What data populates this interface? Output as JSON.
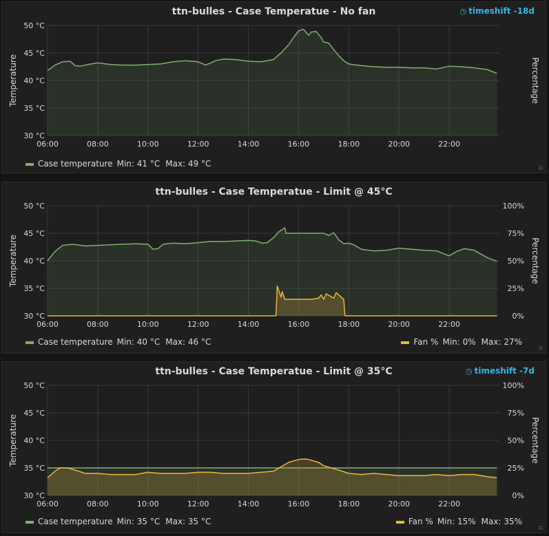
{
  "panels": [
    {
      "title": "ttn-bulles - Case Temperatue - No fan",
      "timeshift": "timeshift -18d",
      "y_left_label": "Temperature",
      "y_right_label": "Percentage",
      "legend_left": {
        "name": "Case temperature",
        "min": "Min: 41 °C",
        "max": "Max: 49 °C"
      },
      "legend_right": null
    },
    {
      "title": "ttn-bulles - Case Temperatue - Limit @ 45°C",
      "timeshift": "",
      "y_left_label": "Temperature",
      "y_right_label": "Percentage",
      "legend_left": {
        "name": "Case temperature",
        "min": "Min: 40 °C",
        "max": "Max: 46 °C"
      },
      "legend_right": {
        "name": "Fan %",
        "min": "Min: 0%",
        "max": "Max: 27%"
      }
    },
    {
      "title": "ttn-bulles - Case Temperatue - Limit @ 35°C",
      "timeshift": "timeshift -7d",
      "y_left_label": "Temperature",
      "y_right_label": "Percentage",
      "legend_left": {
        "name": "Case temperature",
        "min": "Min: 35 °C",
        "max": "Max: 35 °C"
      },
      "legend_right": {
        "name": "Fan %",
        "min": "Min: 15%",
        "max": "Max: 35%"
      }
    }
  ],
  "chart_data": [
    {
      "type": "area",
      "title": "ttn-bulles - Case Temperatue - No fan",
      "xlabel": "",
      "ylabel": "Temperature",
      "y2label": "Percentage",
      "xlim": [
        6,
        24
      ],
      "ylim": [
        30,
        50
      ],
      "x_ticks": [
        "06:00",
        "08:00",
        "10:00",
        "12:00",
        "14:00",
        "16:00",
        "18:00",
        "20:00",
        "22:00"
      ],
      "y_ticks": [
        "30 °C",
        "35 °C",
        "40 °C",
        "45 °C",
        "50 °C"
      ],
      "y2_ticks": [],
      "grid": true,
      "legend": "bottom-left",
      "colors": {
        "temperature": "#7eb26d",
        "fan": "#eab839"
      },
      "series": [
        {
          "name": "Case temperature",
          "axis": "left",
          "x": [
            6.0,
            6.3,
            6.6,
            6.9,
            7.1,
            7.3,
            7.6,
            8.0,
            8.5,
            9.0,
            9.5,
            10.0,
            10.5,
            11.0,
            11.5,
            12.0,
            12.3,
            12.7,
            13.0,
            13.5,
            14.0,
            14.5,
            15.0,
            15.3,
            15.6,
            15.8,
            16.0,
            16.2,
            16.4,
            16.5,
            16.7,
            16.9,
            17.0,
            17.2,
            17.4,
            17.6,
            17.8,
            18.0,
            18.5,
            19.0,
            19.5,
            20.0,
            20.5,
            21.0,
            21.5,
            22.0,
            22.5,
            23.0,
            23.5,
            23.9
          ],
          "y": [
            41.8,
            42.8,
            43.4,
            43.5,
            42.7,
            42.6,
            42.9,
            43.2,
            42.9,
            42.8,
            42.8,
            42.9,
            43.0,
            43.4,
            43.6,
            43.4,
            42.8,
            43.6,
            43.9,
            43.8,
            43.5,
            43.4,
            43.8,
            45.0,
            46.5,
            47.8,
            49.0,
            49.3,
            48.2,
            48.8,
            48.9,
            47.8,
            47.0,
            46.8,
            45.6,
            44.5,
            43.6,
            43.0,
            42.7,
            42.5,
            42.4,
            42.4,
            42.3,
            42.3,
            42.1,
            42.6,
            42.5,
            42.3,
            42.0,
            41.3
          ]
        }
      ]
    },
    {
      "type": "area",
      "title": "ttn-bulles - Case Temperatue - Limit @ 45°C",
      "xlabel": "",
      "ylabel": "Temperature",
      "y2label": "Percentage",
      "xlim": [
        6,
        24
      ],
      "ylim": [
        30,
        50
      ],
      "y2lim": [
        0,
        100
      ],
      "x_ticks": [
        "06:00",
        "08:00",
        "10:00",
        "12:00",
        "14:00",
        "16:00",
        "18:00",
        "20:00",
        "22:00"
      ],
      "y_ticks": [
        "30 °C",
        "35 °C",
        "40 °C",
        "45 °C",
        "50 °C"
      ],
      "y2_ticks": [
        "0%",
        "25%",
        "50%",
        "75%",
        "100%"
      ],
      "grid": true,
      "legend": "bottom-left and bottom-right",
      "colors": {
        "temperature": "#7eb26d",
        "fan": "#eab839"
      },
      "series": [
        {
          "name": "Case temperature",
          "axis": "left",
          "x": [
            6.0,
            6.3,
            6.6,
            7.0,
            7.5,
            8.0,
            8.5,
            9.0,
            9.5,
            10.0,
            10.2,
            10.4,
            10.6,
            11.0,
            11.5,
            12.0,
            12.5,
            13.0,
            13.5,
            14.0,
            14.3,
            14.55,
            14.75,
            15.0,
            15.2,
            15.45,
            15.5,
            16.0,
            16.5,
            17.0,
            17.2,
            17.4,
            17.6,
            17.8,
            18.0,
            18.2,
            18.5,
            19.0,
            19.5,
            20.0,
            20.5,
            21.0,
            21.5,
            22.0,
            22.3,
            22.6,
            23.0,
            23.5,
            23.9
          ],
          "y": [
            40.0,
            41.7,
            42.8,
            43.0,
            42.7,
            42.8,
            42.9,
            43.0,
            43.1,
            43.0,
            42.1,
            42.2,
            43.0,
            43.2,
            43.1,
            43.3,
            43.5,
            43.5,
            43.6,
            43.7,
            43.6,
            43.2,
            43.3,
            44.2,
            45.2,
            46.0,
            45.0,
            45.0,
            45.0,
            45.0,
            44.6,
            45.1,
            43.8,
            43.1,
            43.2,
            42.9,
            42.1,
            41.8,
            41.9,
            42.3,
            42.1,
            41.9,
            41.8,
            40.9,
            41.7,
            42.2,
            41.9,
            40.6,
            39.9
          ]
        },
        {
          "name": "Fan %",
          "axis": "right",
          "x": [
            6.0,
            14.5,
            15.0,
            15.1,
            15.15,
            15.3,
            15.35,
            15.45,
            15.5,
            15.7,
            16.0,
            16.5,
            16.8,
            16.9,
            17.0,
            17.1,
            17.4,
            17.5,
            17.8,
            17.85,
            18.0,
            20.0,
            22.0,
            23.9
          ],
          "y": [
            0,
            0,
            0,
            0,
            27,
            17,
            22,
            15,
            15,
            15,
            15,
            15,
            16,
            19,
            15,
            20,
            16,
            21,
            15,
            0,
            0,
            0,
            0,
            0
          ]
        }
      ]
    },
    {
      "type": "area",
      "title": "ttn-bulles - Case Temperatue - Limit @ 35°C",
      "xlabel": "",
      "ylabel": "Temperature",
      "y2label": "Percentage",
      "xlim": [
        6,
        24
      ],
      "ylim": [
        30,
        50
      ],
      "y2lim": [
        0,
        100
      ],
      "x_ticks": [
        "06:00",
        "08:00",
        "10:00",
        "12:00",
        "14:00",
        "16:00",
        "18:00",
        "20:00",
        "22:00"
      ],
      "y_ticks": [
        "30 °C",
        "35 °C",
        "40 °C",
        "45 °C",
        "50 °C"
      ],
      "y2_ticks": [
        "0%",
        "25%",
        "50%",
        "75%",
        "100%"
      ],
      "grid": true,
      "legend": "bottom-left and bottom-right",
      "colors": {
        "temperature": "#7eb26d",
        "fan": "#eab839"
      },
      "series": [
        {
          "name": "Case temperature",
          "axis": "left",
          "x": [
            6.0,
            23.9
          ],
          "y": [
            35.0,
            35.0
          ]
        },
        {
          "name": "Fan %",
          "axis": "right",
          "x": [
            6.0,
            6.3,
            6.5,
            6.8,
            7.1,
            7.5,
            8.0,
            8.5,
            9.0,
            9.5,
            10.0,
            10.5,
            11.0,
            11.5,
            12.0,
            12.5,
            13.0,
            13.5,
            14.0,
            14.5,
            15.0,
            15.3,
            15.6,
            15.9,
            16.1,
            16.3,
            16.5,
            16.8,
            17.0,
            17.3,
            17.6,
            18.0,
            18.5,
            19.0,
            19.5,
            20.0,
            20.5,
            21.0,
            21.5,
            22.0,
            22.5,
            23.0,
            23.5,
            23.9
          ],
          "y": [
            16,
            22,
            25,
            25,
            23,
            20,
            20,
            19,
            19,
            19,
            21,
            20,
            20,
            20,
            21,
            21,
            20,
            20,
            20,
            21,
            22,
            26,
            30,
            32,
            33,
            33,
            32,
            30,
            27,
            25,
            23,
            20,
            19,
            20,
            19,
            18,
            18,
            18,
            19,
            18,
            19,
            19,
            17,
            16
          ]
        }
      ]
    }
  ]
}
